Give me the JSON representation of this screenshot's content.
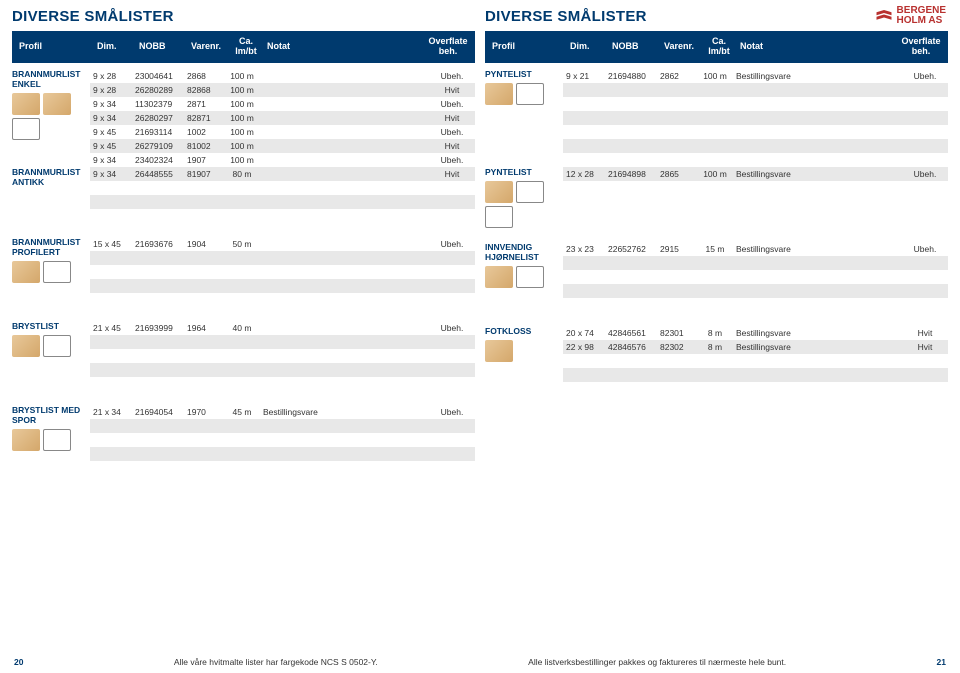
{
  "logo_text": "BERGENE\nHOLM AS",
  "titles": {
    "left": "DIVERSE SMÅLISTER",
    "right": "DIVERSE SMÅLISTER"
  },
  "headers": [
    "Profil",
    "Dim.",
    "NOBB",
    "Varenr.",
    "Ca.\nlm/bt",
    "Notat",
    "Overflate\nbeh."
  ],
  "sections_left": [
    {
      "name": "BRANNMURLIST ENKEL",
      "rows": [
        [
          "9 x 28",
          "23004641",
          "2868",
          "100 m",
          "",
          "Ubeh."
        ],
        [
          "9 x 28",
          "26280289",
          "82868",
          "100 m",
          "",
          "Hvit"
        ],
        [
          "9 x 34",
          "11302379",
          "2871",
          "100 m",
          "",
          "Ubeh."
        ],
        [
          "9 x 34",
          "26280297",
          "82871",
          "100 m",
          "",
          "Hvit"
        ],
        [
          "9 x 45",
          "21693114",
          "1002",
          "100 m",
          "",
          "Ubeh."
        ],
        [
          "9 x 45",
          "26279109",
          "81002",
          "100 m",
          "",
          "Hvit"
        ],
        [
          "9 x 34",
          "23402324",
          "1907",
          "100 m",
          "",
          "Ubeh."
        ]
      ],
      "extra": {
        "name": "BRANNMURLIST ANTIKK",
        "row": [
          "9 x 34",
          "26448555",
          "81907",
          "80 m",
          "",
          "Hvit"
        ]
      },
      "thumbs": [
        "wood",
        "wood",
        "shape"
      ]
    },
    {
      "name": "BRANNMURLIST PROFILERT",
      "rows": [
        [
          "15 x 45",
          "21693676",
          "1904",
          "50 m",
          "",
          "Ubeh."
        ]
      ],
      "pad": 4,
      "thumbs": [
        "wood",
        "shape"
      ]
    },
    {
      "name": "BRYSTLIST",
      "rows": [
        [
          "21 x 45",
          "21693999",
          "1964",
          "40 m",
          "",
          "Ubeh."
        ]
      ],
      "pad": 4,
      "thumbs": [
        "wood",
        "shape"
      ]
    },
    {
      "name": "BRYSTLIST MED SPOR",
      "rows": [
        [
          "21 x 34",
          "21694054",
          "1970",
          "45 m",
          "Bestillingsvare",
          "Ubeh."
        ]
      ],
      "pad": 4,
      "thumbs": [
        "wood",
        "shape"
      ]
    }
  ],
  "sections_right": [
    {
      "name": "PYNTELIST",
      "rows": [
        [
          "9 x 21",
          "21694880",
          "2862",
          "100 m",
          "Bestillingsvare",
          "Ubeh."
        ]
      ],
      "pad": 6,
      "extra": {
        "name": "PYNTELIST",
        "row": [
          "12 x 28",
          "21694898",
          "2865",
          "100 m",
          "Bestillingsvare",
          "Ubeh."
        ]
      },
      "extra_pad": 0,
      "thumbs": [
        "wood",
        "shape"
      ],
      "thumbs2": [
        "wood",
        "shape",
        "shape"
      ]
    },
    {
      "name": "INNVENDIG HJØRNELIST",
      "rows": [
        [
          "23 x 23",
          "22652762",
          "2915",
          "15 m",
          "Bestillingsvare",
          "Ubeh."
        ]
      ],
      "pad": 4,
      "thumbs": [
        "wood",
        "shape"
      ]
    },
    {
      "name": "FOTKLOSS",
      "rows": [
        [
          "20 x 74",
          "42846561",
          "82301",
          "8 m",
          "Bestillingsvare",
          "Hvit"
        ],
        [
          "22 x 98",
          "42846576",
          "82302",
          "8 m",
          "Bestillingsvare",
          "Hvit"
        ]
      ],
      "pad": 3,
      "thumbs": [
        "wood"
      ]
    }
  ],
  "footer": {
    "left_page": "20",
    "right_page": "21",
    "left_text": "Alle våre hvitmalte lister har fargekode NCS S 0502-Y.",
    "right_text": "Alle listverksbestillinger pakkes og faktureres til nærmeste hele bunt."
  }
}
